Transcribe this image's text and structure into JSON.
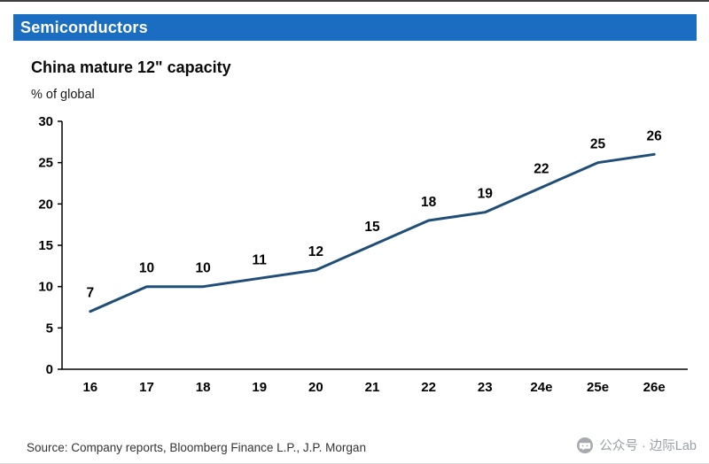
{
  "header": {
    "title": "Semiconductors",
    "bar_color": "#1b6dc1"
  },
  "chart": {
    "title": "China mature 12\" capacity",
    "subtitle": "% of global"
  },
  "chart_data": {
    "type": "line",
    "title": "China mature 12\" capacity",
    "ylabel": "% of global",
    "xlabel": "",
    "categories": [
      "16",
      "17",
      "18",
      "19",
      "20",
      "21",
      "22",
      "23",
      "24e",
      "25e",
      "26e"
    ],
    "values": [
      7,
      10,
      10,
      11,
      12,
      15,
      18,
      19,
      22,
      25,
      26
    ],
    "data_labels": [
      7,
      10,
      10,
      11,
      12,
      15,
      18,
      19,
      22,
      25,
      26
    ],
    "ylim": [
      0,
      30
    ],
    "yticks": [
      0,
      5,
      10,
      15,
      20,
      25,
      30
    ],
    "line_color": "#1f4e79",
    "grid": false,
    "legend_position": "none"
  },
  "footer": {
    "source": "Source: Company reports, Bloomberg Finance L.P., J.P. Morgan",
    "wechat_label": "公众号 · 边际Lab"
  }
}
